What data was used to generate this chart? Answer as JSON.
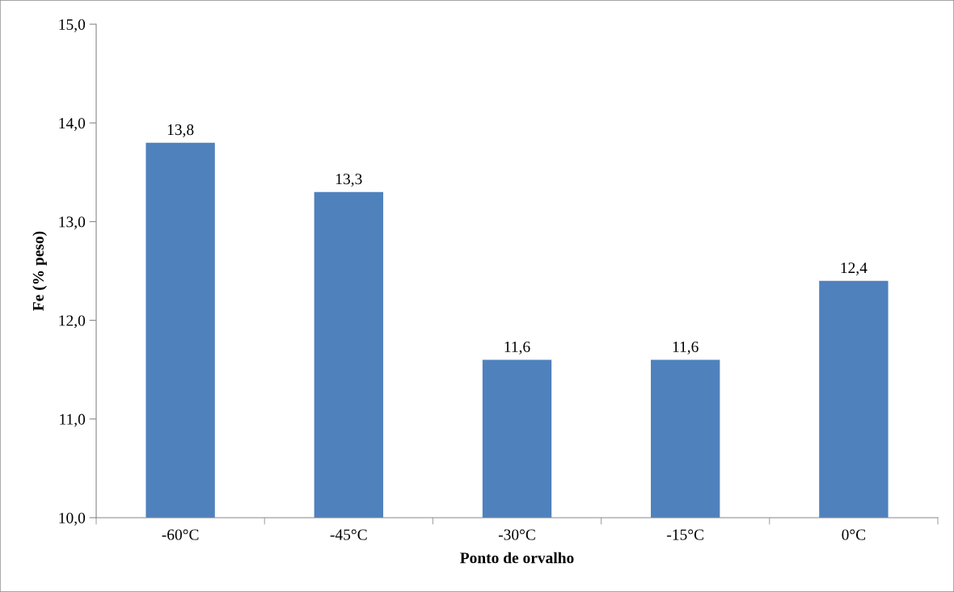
{
  "chart_data": {
    "type": "bar",
    "xlabel": "Ponto de orvalho",
    "ylabel": "Fe (% peso)",
    "categories": [
      "-60°C",
      "-45°C",
      "-30°C",
      "-15°C",
      "0°C"
    ],
    "values": [
      13.8,
      13.3,
      11.6,
      11.6,
      12.4
    ],
    "value_labels": [
      "13,8",
      "13,3",
      "11,6",
      "11,6",
      "12,4"
    ],
    "color": "#4f81bd",
    "ylim": [
      10,
      15
    ],
    "yticks": [
      {
        "value": 10,
        "label": "10,0"
      },
      {
        "value": 11,
        "label": "11,0"
      },
      {
        "value": 12,
        "label": "12,0"
      },
      {
        "value": 13,
        "label": "13,0"
      },
      {
        "value": 14,
        "label": "14,0"
      },
      {
        "value": 15,
        "label": "15,0"
      }
    ],
    "grid": false,
    "legend": false
  }
}
